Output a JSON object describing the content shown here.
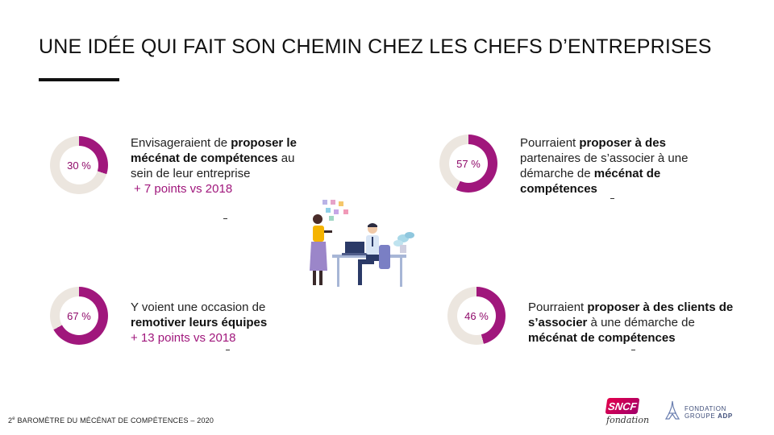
{
  "title": "UNE IDÉE QUI FAIT SON CHEMIN CHEZ LES CHEFS D’ENTREPRISES",
  "colors": {
    "accent": "#a0177c",
    "track": "#ece6df",
    "percent_text": "#8f0a6a"
  },
  "stats": [
    {
      "percent": 30,
      "percent_label": "30 %",
      "t1": "Envisageraient de ",
      "b1": "proposer le mécénat de compétences",
      "t2": " au sein de leur entreprise",
      "extra": "+ 7 points vs 2018"
    },
    {
      "percent": 57,
      "percent_label": "57 %",
      "t1": "Pourraient ",
      "b1": "proposer à des",
      "t2": " partenaires de s’associer à une démarche de ",
      "b2": "mécénat de compétences"
    },
    {
      "percent": 67,
      "percent_label": "67 %",
      "t1": "Y voient une occasion de ",
      "b1": "remotiver leurs équipes",
      "extra": "+ 13 points vs 2018"
    },
    {
      "percent": 46,
      "percent_label": "46 %",
      "t1": "Pourraient ",
      "b1": "proposer à des clients de s’associer",
      "t2": " à une démarche de ",
      "b2": "mécénat de compétences"
    }
  ],
  "footer": {
    "sup": "e",
    "before": "2",
    "text": " BAROMÈTRE DU MÉCÉNAT DE COMPÉTENCES – 2020"
  },
  "logos": {
    "sncf": {
      "mark": "SNCF",
      "sub": "fondation"
    },
    "adp": {
      "line1": "FONDATION",
      "line2a": "GROUPE ",
      "line2b": "ADP"
    }
  }
}
